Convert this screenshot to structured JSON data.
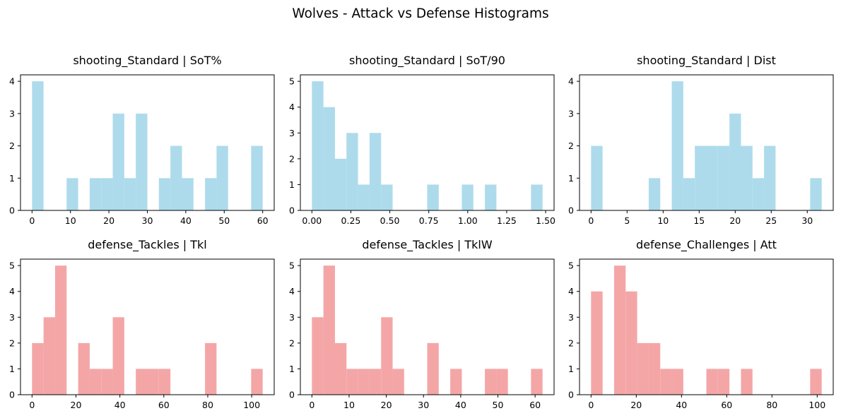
{
  "suptitle": "Wolves - Attack vs Defense Histograms",
  "colors": {
    "attack": "#ADDBEC",
    "defense": "#F4A6A7"
  },
  "chart_data": [
    {
      "type": "bar",
      "title": "shooting_Standard | SoT%",
      "color": "#ADDBEC",
      "xlim": [
        -3.0,
        63.0
      ],
      "ylim": [
        0,
        4.2
      ],
      "xticks": [
        0,
        10,
        20,
        30,
        40,
        50,
        60
      ],
      "xtick_labels": [
        "0",
        "10",
        "20",
        "30",
        "40",
        "50",
        "60"
      ],
      "yticks": [
        0,
        1,
        2,
        3,
        4
      ],
      "bins": [
        {
          "x0": 0.0,
          "x1": 3.0,
          "count": 4
        },
        {
          "x0": 9.0,
          "x1": 12.0,
          "count": 1
        },
        {
          "x0": 15.0,
          "x1": 18.0,
          "count": 1
        },
        {
          "x0": 18.0,
          "x1": 21.0,
          "count": 1
        },
        {
          "x0": 21.0,
          "x1": 24.0,
          "count": 3
        },
        {
          "x0": 24.0,
          "x1": 27.0,
          "count": 1
        },
        {
          "x0": 27.0,
          "x1": 30.0,
          "count": 3
        },
        {
          "x0": 33.0,
          "x1": 36.0,
          "count": 1
        },
        {
          "x0": 36.0,
          "x1": 39.0,
          "count": 2
        },
        {
          "x0": 39.0,
          "x1": 42.0,
          "count": 1
        },
        {
          "x0": 45.0,
          "x1": 48.0,
          "count": 1
        },
        {
          "x0": 48.0,
          "x1": 51.0,
          "count": 2
        },
        {
          "x0": 57.0,
          "x1": 60.0,
          "count": 2
        }
      ]
    },
    {
      "type": "bar",
      "title": "shooting_Standard | SoT/90",
      "color": "#ADDBEC",
      "xlim": [
        -0.074,
        1.554
      ],
      "ylim": [
        0,
        5.25
      ],
      "xticks": [
        0,
        0.25,
        0.5,
        0.75,
        1.0,
        1.25,
        1.5
      ],
      "xtick_labels": [
        "0.00",
        "0.25",
        "0.50",
        "0.75",
        "1.00",
        "1.25",
        "1.50"
      ],
      "yticks": [
        0,
        1,
        2,
        3,
        4,
        5
      ],
      "bins": [
        {
          "x0": 0.0,
          "x1": 0.074,
          "count": 5
        },
        {
          "x0": 0.074,
          "x1": 0.148,
          "count": 4
        },
        {
          "x0": 0.148,
          "x1": 0.222,
          "count": 2
        },
        {
          "x0": 0.222,
          "x1": 0.296,
          "count": 3
        },
        {
          "x0": 0.296,
          "x1": 0.37,
          "count": 1
        },
        {
          "x0": 0.37,
          "x1": 0.444,
          "count": 3
        },
        {
          "x0": 0.444,
          "x1": 0.518,
          "count": 1
        },
        {
          "x0": 0.74,
          "x1": 0.814,
          "count": 1
        },
        {
          "x0": 0.962,
          "x1": 1.036,
          "count": 1
        },
        {
          "x0": 1.11,
          "x1": 1.184,
          "count": 1
        },
        {
          "x0": 1.406,
          "x1": 1.48,
          "count": 1
        }
      ]
    },
    {
      "type": "bar",
      "title": "shooting_Standard | Dist",
      "color": "#ADDBEC",
      "xlim": [
        -1.6,
        33.6
      ],
      "ylim": [
        0,
        4.2
      ],
      "xticks": [
        0,
        5,
        10,
        15,
        20,
        25,
        30
      ],
      "xtick_labels": [
        "0",
        "5",
        "10",
        "15",
        "20",
        "25",
        "30"
      ],
      "yticks": [
        0,
        1,
        2,
        3,
        4
      ],
      "bins": [
        {
          "x0": 0.0,
          "x1": 1.6,
          "count": 2
        },
        {
          "x0": 8.0,
          "x1": 9.6,
          "count": 1
        },
        {
          "x0": 11.2,
          "x1": 12.8,
          "count": 4
        },
        {
          "x0": 12.8,
          "x1": 14.4,
          "count": 1
        },
        {
          "x0": 14.4,
          "x1": 16.0,
          "count": 2
        },
        {
          "x0": 16.0,
          "x1": 17.6,
          "count": 2
        },
        {
          "x0": 17.6,
          "x1": 19.2,
          "count": 2
        },
        {
          "x0": 19.2,
          "x1": 20.8,
          "count": 3
        },
        {
          "x0": 20.8,
          "x1": 22.4,
          "count": 2
        },
        {
          "x0": 22.4,
          "x1": 24.0,
          "count": 1
        },
        {
          "x0": 24.0,
          "x1": 25.6,
          "count": 2
        },
        {
          "x0": 30.4,
          "x1": 32.0,
          "count": 1
        }
      ]
    },
    {
      "type": "bar",
      "title": "defense_Tackles | Tkl",
      "color": "#F4A6A7",
      "xlim": [
        -5.25,
        110.25
      ],
      "ylim": [
        0,
        5.25
      ],
      "xticks": [
        0,
        20,
        40,
        60,
        80,
        100
      ],
      "xtick_labels": [
        "0",
        "20",
        "40",
        "60",
        "80",
        "100"
      ],
      "yticks": [
        0,
        1,
        2,
        3,
        4,
        5
      ],
      "bins": [
        {
          "x0": 0.0,
          "x1": 5.25,
          "count": 2
        },
        {
          "x0": 5.25,
          "x1": 10.5,
          "count": 3
        },
        {
          "x0": 10.5,
          "x1": 15.75,
          "count": 5
        },
        {
          "x0": 21.0,
          "x1": 26.25,
          "count": 2
        },
        {
          "x0": 26.25,
          "x1": 31.5,
          "count": 1
        },
        {
          "x0": 31.5,
          "x1": 36.75,
          "count": 1
        },
        {
          "x0": 36.75,
          "x1": 42.0,
          "count": 3
        },
        {
          "x0": 47.25,
          "x1": 52.5,
          "count": 1
        },
        {
          "x0": 52.5,
          "x1": 57.75,
          "count": 1
        },
        {
          "x0": 57.75,
          "x1": 63.0,
          "count": 1
        },
        {
          "x0": 78.75,
          "x1": 84.0,
          "count": 2
        },
        {
          "x0": 99.75,
          "x1": 105.0,
          "count": 1
        }
      ]
    },
    {
      "type": "bar",
      "title": "defense_Tackles | TklW",
      "color": "#F4A6A7",
      "xlim": [
        -3.1,
        65.1
      ],
      "ylim": [
        0,
        5.25
      ],
      "xticks": [
        0,
        10,
        20,
        30,
        40,
        50,
        60
      ],
      "xtick_labels": [
        "0",
        "10",
        "20",
        "30",
        "40",
        "50",
        "60"
      ],
      "yticks": [
        0,
        1,
        2,
        3,
        4,
        5
      ],
      "bins": [
        {
          "x0": 0.0,
          "x1": 3.1,
          "count": 3
        },
        {
          "x0": 3.1,
          "x1": 6.2,
          "count": 5
        },
        {
          "x0": 6.2,
          "x1": 9.3,
          "count": 2
        },
        {
          "x0": 9.3,
          "x1": 12.4,
          "count": 1
        },
        {
          "x0": 12.4,
          "x1": 15.5,
          "count": 1
        },
        {
          "x0": 15.5,
          "x1": 18.6,
          "count": 1
        },
        {
          "x0": 18.6,
          "x1": 21.7,
          "count": 3
        },
        {
          "x0": 21.7,
          "x1": 24.8,
          "count": 1
        },
        {
          "x0": 31.0,
          "x1": 34.1,
          "count": 2
        },
        {
          "x0": 37.2,
          "x1": 40.3,
          "count": 1
        },
        {
          "x0": 46.5,
          "x1": 49.6,
          "count": 1
        },
        {
          "x0": 49.6,
          "x1": 52.7,
          "count": 1
        },
        {
          "x0": 58.9,
          "x1": 62.0,
          "count": 1
        }
      ]
    },
    {
      "type": "bar",
      "title": "defense_Challenges | Att",
      "color": "#F4A6A7",
      "xlim": [
        -5.1,
        107.1
      ],
      "ylim": [
        0,
        5.25
      ],
      "xticks": [
        0,
        20,
        40,
        60,
        80,
        100
      ],
      "xtick_labels": [
        "0",
        "20",
        "40",
        "60",
        "80",
        "100"
      ],
      "yticks": [
        0,
        1,
        2,
        3,
        4,
        5
      ],
      "bins": [
        {
          "x0": 0.0,
          "x1": 5.1,
          "count": 4
        },
        {
          "x0": 10.2,
          "x1": 15.3,
          "count": 5
        },
        {
          "x0": 15.3,
          "x1": 20.4,
          "count": 4
        },
        {
          "x0": 20.4,
          "x1": 25.5,
          "count": 2
        },
        {
          "x0": 25.5,
          "x1": 30.6,
          "count": 2
        },
        {
          "x0": 30.6,
          "x1": 35.7,
          "count": 1
        },
        {
          "x0": 35.7,
          "x1": 40.8,
          "count": 1
        },
        {
          "x0": 51.0,
          "x1": 56.1,
          "count": 1
        },
        {
          "x0": 56.1,
          "x1": 61.2,
          "count": 1
        },
        {
          "x0": 66.3,
          "x1": 71.4,
          "count": 1
        },
        {
          "x0": 96.9,
          "x1": 102.0,
          "count": 1
        }
      ]
    }
  ]
}
